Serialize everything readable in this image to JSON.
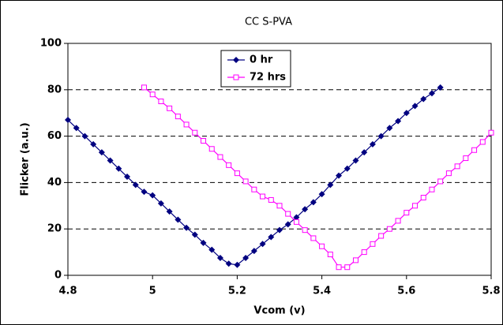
{
  "chart_data": {
    "type": "line",
    "title": "CC S-PVA",
    "x_label": "Vcom (v)",
    "y_label": "Flicker (a.u.)",
    "xlim": [
      4.8,
      5.8
    ],
    "xticks": [
      4.8,
      5,
      5.2,
      5.4,
      5.6,
      5.8
    ],
    "ylim": [
      0,
      100
    ],
    "yticks": [
      0,
      20,
      40,
      60,
      80,
      100
    ],
    "grid": true,
    "legend": "top",
    "series": [
      {
        "name": "0 hr",
        "color": "#000080",
        "marker": "diamond",
        "x": [
          4.8,
          4.82,
          4.84,
          4.86,
          4.88,
          4.9,
          4.92,
          4.94,
          4.96,
          4.98,
          5.0,
          5.02,
          5.04,
          5.06,
          5.08,
          5.1,
          5.12,
          5.14,
          5.16,
          5.18,
          5.2,
          5.22,
          5.24,
          5.26,
          5.28,
          5.3,
          5.32,
          5.34,
          5.36,
          5.38,
          5.4,
          5.42,
          5.44,
          5.46,
          5.48,
          5.5,
          5.52,
          5.54,
          5.56,
          5.58,
          5.6,
          5.62,
          5.64,
          5.66,
          5.68
        ],
        "values": [
          67,
          63.5,
          60,
          56.5,
          53,
          49.5,
          46,
          42.5,
          39,
          36,
          34.5,
          31,
          27.5,
          24,
          20.5,
          17.5,
          14,
          11,
          7.5,
          5,
          4.5,
          7.5,
          10.5,
          13.5,
          16.5,
          19.5,
          22,
          25,
          28.5,
          31.5,
          35,
          39,
          43,
          46,
          49.5,
          53,
          56.5,
          60,
          63.5,
          66.5,
          70,
          73,
          76,
          78.5,
          81
        ]
      },
      {
        "name": "72 hrs",
        "color": "#ff00ff",
        "marker": "square",
        "x": [
          4.98,
          5.0,
          5.02,
          5.04,
          5.06,
          5.08,
          5.1,
          5.12,
          5.14,
          5.16,
          5.18,
          5.2,
          5.22,
          5.24,
          5.26,
          5.28,
          5.3,
          5.32,
          5.34,
          5.36,
          5.38,
          5.4,
          5.42,
          5.44,
          5.46,
          5.48,
          5.5,
          5.52,
          5.54,
          5.56,
          5.58,
          5.6,
          5.62,
          5.64,
          5.66,
          5.68,
          5.7,
          5.72,
          5.74,
          5.76,
          5.78,
          5.8
        ],
        "values": [
          81,
          78,
          75,
          72,
          68.5,
          65,
          61.5,
          58,
          54.5,
          51,
          47.5,
          44,
          40.5,
          37,
          34,
          32.5,
          30,
          26.5,
          23,
          19.5,
          16,
          12.5,
          9,
          3.5,
          3.5,
          6.5,
          10,
          13.5,
          17,
          20,
          23.5,
          27,
          30,
          33.5,
          37,
          40.5,
          44,
          47,
          50.5,
          54,
          57.5,
          61.5
        ]
      }
    ]
  }
}
